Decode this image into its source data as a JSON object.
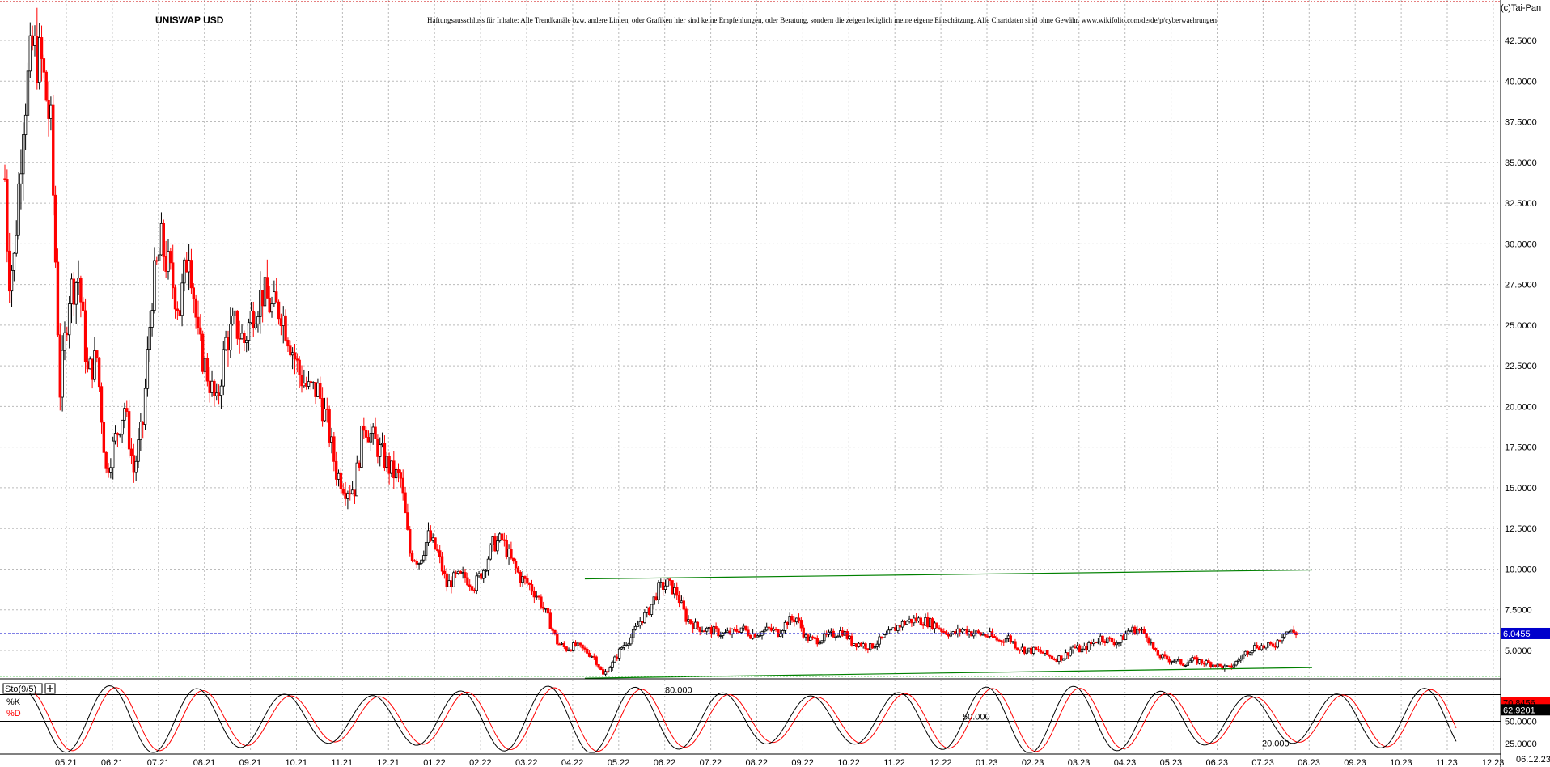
{
  "header": {
    "title": "UNISWAP USD",
    "disclaimer": "Haftungsausschluss für Inhalte: Alle Trendkanäle bzw. andere Linien, oder Grafiken hier sind keine Empfehlungen, oder Beratung, sondern die zeigen lediglich meine eigene Einschätzung. Alle Chartdaten sind ohne Gewähr.  www.wikifolio.com/de/de/p/cyberwaehrungen",
    "copyright": "(c)Tai-Pan"
  },
  "colors": {
    "up_candle": "#000000",
    "down_candle": "#ff0000",
    "trend_channel": "#008000",
    "current_price_line": "#0000cc",
    "grid": "#bbbbbb"
  },
  "chart_data": [
    {
      "type": "candlestick",
      "title": "UNISWAP USD",
      "ylim": [
        2.5,
        43.5
      ],
      "y_ticks": [
        "5.0000",
        "7.5000",
        "10.0000",
        "12.5000",
        "15.0000",
        "17.5000",
        "20.0000",
        "22.5000",
        "25.0000",
        "27.5000",
        "30.0000",
        "32.5000",
        "35.0000",
        "37.5000",
        "40.0000",
        "42.5000"
      ],
      "x_labels": [
        "05.21",
        "06.21",
        "07.21",
        "08.21",
        "09.21",
        "10.21",
        "11.21",
        "12.21",
        "01.22",
        "02.22",
        "03.22",
        "04.22",
        "05.22",
        "06.22",
        "07.22",
        "08.22",
        "09.22",
        "10.22",
        "11.22",
        "12.22",
        "01.23",
        "02.23",
        "03.23",
        "04.23",
        "05.23",
        "06.23",
        "07.23",
        "08.23",
        "09.23",
        "10.23",
        "11.23",
        "12.23"
      ],
      "last_date_label": "06.12.23",
      "current_price": 6.0455,
      "current_price_label": "6.0455",
      "price_path": [
        {
          "t": 0.0,
          "v": 34
        },
        {
          "t": 0.08,
          "v": 28
        },
        {
          "t": 0.2,
          "v": 29
        },
        {
          "t": 0.4,
          "v": 38
        },
        {
          "t": 0.6,
          "v": 42
        },
        {
          "t": 0.8,
          "v": 41
        },
        {
          "t": 1.0,
          "v": 37
        },
        {
          "t": 1.2,
          "v": 21
        },
        {
          "t": 1.4,
          "v": 27
        },
        {
          "t": 1.6,
          "v": 28
        },
        {
          "t": 1.8,
          "v": 22
        },
        {
          "t": 2.0,
          "v": 23
        },
        {
          "t": 2.2,
          "v": 16
        },
        {
          "t": 2.4,
          "v": 18
        },
        {
          "t": 2.6,
          "v": 20
        },
        {
          "t": 2.8,
          "v": 16
        },
        {
          "t": 3.0,
          "v": 19
        },
        {
          "t": 3.2,
          "v": 27
        },
        {
          "t": 3.4,
          "v": 30
        },
        {
          "t": 3.6,
          "v": 28
        },
        {
          "t": 3.8,
          "v": 26
        },
        {
          "t": 4.0,
          "v": 30
        },
        {
          "t": 4.2,
          "v": 24
        },
        {
          "t": 4.4,
          "v": 22
        },
        {
          "t": 4.6,
          "v": 20
        },
        {
          "t": 4.8,
          "v": 24
        },
        {
          "t": 5.0,
          "v": 25
        },
        {
          "t": 5.2,
          "v": 24
        },
        {
          "t": 5.4,
          "v": 26
        },
        {
          "t": 5.6,
          "v": 27
        },
        {
          "t": 5.8,
          "v": 26
        },
        {
          "t": 6.0,
          "v": 26
        },
        {
          "t": 6.2,
          "v": 24
        },
        {
          "t": 6.4,
          "v": 22
        },
        {
          "t": 6.6,
          "v": 21
        },
        {
          "t": 6.8,
          "v": 21
        },
        {
          "t": 7.0,
          "v": 19
        },
        {
          "t": 7.2,
          "v": 16
        },
        {
          "t": 7.4,
          "v": 15
        },
        {
          "t": 7.6,
          "v": 15
        },
        {
          "t": 7.8,
          "v": 19
        },
        {
          "t": 8.0,
          "v": 18
        },
        {
          "t": 8.2,
          "v": 17
        },
        {
          "t": 8.4,
          "v": 16
        },
        {
          "t": 8.6,
          "v": 15.5
        },
        {
          "t": 8.8,
          "v": 11
        },
        {
          "t": 9.0,
          "v": 10.5
        },
        {
          "t": 9.2,
          "v": 12
        },
        {
          "t": 9.4,
          "v": 11
        },
        {
          "t": 9.6,
          "v": 9
        },
        {
          "t": 9.8,
          "v": 9.5
        },
        {
          "t": 10.0,
          "v": 9.5
        },
        {
          "t": 10.2,
          "v": 9
        },
        {
          "t": 10.4,
          "v": 10
        },
        {
          "t": 10.6,
          "v": 11.5
        },
        {
          "t": 10.8,
          "v": 11.8
        },
        {
          "t": 11.0,
          "v": 10.5
        },
        {
          "t": 11.2,
          "v": 9.5
        },
        {
          "t": 11.4,
          "v": 9
        },
        {
          "t": 11.6,
          "v": 8.2
        },
        {
          "t": 11.8,
          "v": 7
        },
        {
          "t": 12.0,
          "v": 5.5
        },
        {
          "t": 12.2,
          "v": 5.1
        },
        {
          "t": 12.4,
          "v": 5.3
        },
        {
          "t": 12.6,
          "v": 5.0
        },
        {
          "t": 12.8,
          "v": 4.6
        },
        {
          "t": 13.0,
          "v": 3.5
        },
        {
          "t": 13.2,
          "v": 4.2
        },
        {
          "t": 13.4,
          "v": 5.2
        },
        {
          "t": 13.6,
          "v": 5.8
        },
        {
          "t": 13.8,
          "v": 6.8
        },
        {
          "t": 14.0,
          "v": 7.5
        },
        {
          "t": 14.2,
          "v": 8.8
        },
        {
          "t": 14.4,
          "v": 9.1
        },
        {
          "t": 14.6,
          "v": 8.5
        },
        {
          "t": 14.8,
          "v": 7.0
        },
        {
          "t": 15.0,
          "v": 6.5
        },
        {
          "t": 15.2,
          "v": 6.3
        },
        {
          "t": 15.4,
          "v": 6.2
        },
        {
          "t": 15.6,
          "v": 6.0
        },
        {
          "t": 15.8,
          "v": 6.1
        },
        {
          "t": 16.0,
          "v": 6.4
        },
        {
          "t": 16.2,
          "v": 6.0
        },
        {
          "t": 16.4,
          "v": 6.1
        },
        {
          "t": 16.6,
          "v": 6.3
        },
        {
          "t": 16.8,
          "v": 6.1
        },
        {
          "t": 17.0,
          "v": 6.8
        },
        {
          "t": 17.2,
          "v": 7.0
        },
        {
          "t": 17.4,
          "v": 5.8
        },
        {
          "t": 17.6,
          "v": 5.6
        },
        {
          "t": 17.8,
          "v": 5.8
        },
        {
          "t": 18.0,
          "v": 6.0
        },
        {
          "t": 18.2,
          "v": 6.2
        },
        {
          "t": 18.4,
          "v": 5.5
        },
        {
          "t": 18.6,
          "v": 5.4
        },
        {
          "t": 18.8,
          "v": 5.2
        },
        {
          "t": 19.0,
          "v": 5.6
        },
        {
          "t": 19.2,
          "v": 6.0
        },
        {
          "t": 19.4,
          "v": 6.5
        },
        {
          "t": 19.6,
          "v": 6.8
        },
        {
          "t": 19.8,
          "v": 6.9
        },
        {
          "t": 20.0,
          "v": 6.8
        },
        {
          "t": 20.2,
          "v": 6.6
        },
        {
          "t": 20.4,
          "v": 6.2
        },
        {
          "t": 20.6,
          "v": 6.0
        },
        {
          "t": 20.8,
          "v": 6.3
        },
        {
          "t": 21.0,
          "v": 6.1
        },
        {
          "t": 21.2,
          "v": 6.0
        },
        {
          "t": 21.4,
          "v": 5.9
        },
        {
          "t": 21.6,
          "v": 5.6
        },
        {
          "t": 21.8,
          "v": 5.8
        },
        {
          "t": 22.0,
          "v": 5.2
        },
        {
          "t": 22.2,
          "v": 5.0
        },
        {
          "t": 22.4,
          "v": 5.0
        },
        {
          "t": 22.6,
          "v": 4.8
        },
        {
          "t": 22.8,
          "v": 4.5
        },
        {
          "t": 23.0,
          "v": 4.6
        },
        {
          "t": 23.2,
          "v": 5.2
        },
        {
          "t": 23.4,
          "v": 5.0
        },
        {
          "t": 23.6,
          "v": 5.4
        },
        {
          "t": 23.8,
          "v": 5.8
        },
        {
          "t": 24.0,
          "v": 5.6
        },
        {
          "t": 24.2,
          "v": 5.5
        },
        {
          "t": 24.4,
          "v": 6.2
        },
        {
          "t": 24.6,
          "v": 6.3
        },
        {
          "t": 24.8,
          "v": 6.0
        },
        {
          "t": 25.0,
          "v": 4.8
        },
        {
          "t": 25.2,
          "v": 4.5
        },
        {
          "t": 25.4,
          "v": 4.4
        },
        {
          "t": 25.6,
          "v": 4.2
        },
        {
          "t": 25.8,
          "v": 4.4
        },
        {
          "t": 26.0,
          "v": 4.3
        },
        {
          "t": 26.2,
          "v": 4.2
        },
        {
          "t": 26.4,
          "v": 4.0
        },
        {
          "t": 26.6,
          "v": 3.9
        },
        {
          "t": 26.8,
          "v": 4.4
        },
        {
          "t": 27.0,
          "v": 5.0
        },
        {
          "t": 27.2,
          "v": 5.3
        },
        {
          "t": 27.4,
          "v": 5.2
        },
        {
          "t": 27.6,
          "v": 5.4
        },
        {
          "t": 27.8,
          "v": 6.2
        },
        {
          "t": 28.0,
          "v": 6.1
        },
        {
          "t": 28.1,
          "v": 6.05
        }
      ],
      "trend_channel": {
        "upper": {
          "from": {
            "t": 12.6,
            "v": 9.4
          },
          "to": {
            "t": 28.4,
            "v": 9.95
          }
        },
        "lower": {
          "from": {
            "t": 12.6,
            "v": 3.3
          },
          "to": {
            "t": 28.4,
            "v": 3.95
          }
        }
      }
    },
    {
      "type": "line",
      "title": "",
      "indicator_label": "Sto(9/5)",
      "ylim": [
        15,
        95
      ],
      "y_ticks": [
        "25.0000",
        "50.0000"
      ],
      "levels": [
        {
          "value": 80,
          "label": "80.000"
        },
        {
          "value": 50,
          "label": "50.000"
        },
        {
          "value": 20,
          "label": "20.000"
        }
      ],
      "series": [
        {
          "name": "%K",
          "color": "#000000",
          "last_value_label": "70.8456",
          "last_value": 70.85
        },
        {
          "name": "%D",
          "color": "#ff0000",
          "last_value_label": "62.9201",
          "last_value": 62.92
        }
      ]
    }
  ]
}
